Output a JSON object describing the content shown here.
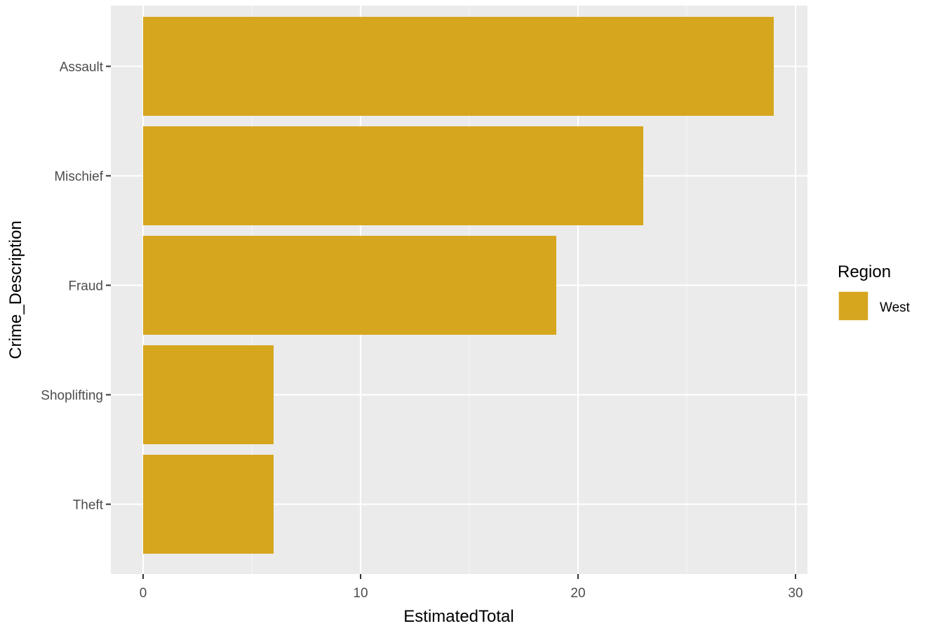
{
  "chart_data": {
    "type": "bar",
    "orientation": "horizontal",
    "categories": [
      "Assault",
      "Mischief",
      "Fraud",
      "Shoplifting",
      "Theft"
    ],
    "series": [
      {
        "name": "West",
        "values": [
          29,
          23,
          19,
          6,
          6
        ]
      }
    ],
    "xlabel": "EstimatedTotal",
    "ylabel": "Crime_Description",
    "xlim": [
      0,
      30
    ],
    "x_ticks": [
      "0",
      "10",
      "20",
      "30"
    ],
    "grid": true,
    "legend": {
      "title": "Region",
      "position": "right",
      "entries": [
        "West"
      ]
    },
    "colors": {
      "bar": "#D6A61F",
      "panel_background": "#EBEBEB",
      "grid": "#FFFFFF",
      "tick_text": "#4D4D4D",
      "tick_mark": "#333333"
    }
  }
}
